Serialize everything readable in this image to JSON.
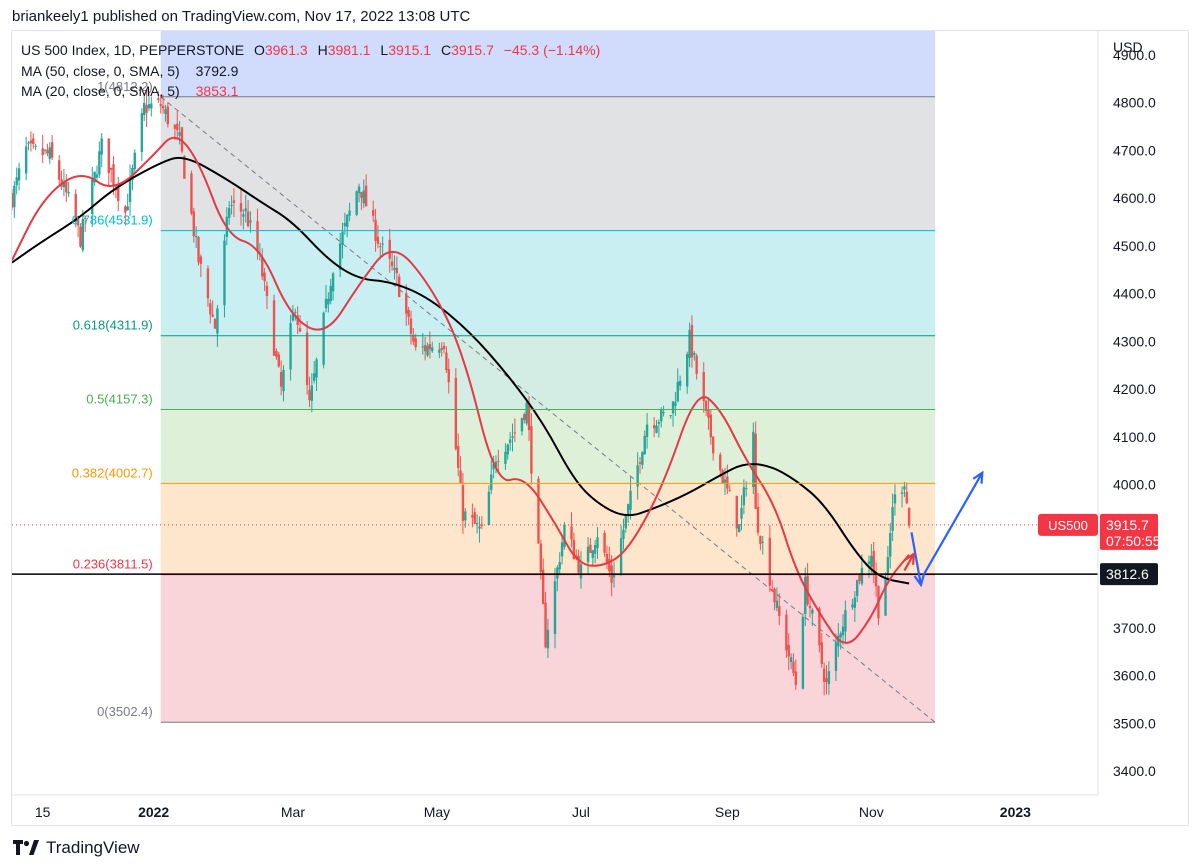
{
  "header": {
    "publish_line": "briankeely1 published on TradingView.com, Nov 17, 2022 13:08 UTC"
  },
  "legend": {
    "symbol": "US 500 Index, 1D, PEPPERSTONE",
    "open_label": "O",
    "open": "3961.3",
    "high_label": "H",
    "high": "3981.1",
    "low_label": "L",
    "low": "3915.1",
    "close_label": "C",
    "close": "3915.7",
    "change": "−45.3 (−1.14%)",
    "ma50_label": "MA (50, close, 0, SMA, 5)",
    "ma50_value": "3792.9",
    "ma20_label": "MA (20, close, 0, SMA, 5)",
    "ma20_value": "3853.1"
  },
  "footer": {
    "brand": "TradingView"
  },
  "colors": {
    "up": "#26a69a",
    "down": "#ef5350",
    "ma50": "#000000",
    "ma20": "#e53945",
    "arrow": "#2962ff"
  },
  "chart_data": {
    "type": "candlestick",
    "title": "US 500 Index, 1D, PEPPERSTONE",
    "currency": "USD",
    "ylim": [
      3350,
      4950
    ],
    "y_ticks": [
      "3400.0",
      "3500.0",
      "3600.0",
      "3700.0",
      "3800.0",
      "3900.0",
      "4000.0",
      "4100.0",
      "4200.0",
      "4300.0",
      "4400.0",
      "4500.0",
      "4600.0",
      "4700.0",
      "4800.0",
      "4900.0"
    ],
    "y_values": [
      3400,
      3500,
      3600,
      3700,
      3800,
      3900,
      4000,
      4100,
      4200,
      4300,
      4400,
      4500,
      4600,
      4700,
      4800,
      4900
    ],
    "x_ticks": [
      {
        "label": "15",
        "date": "2021-11-15"
      },
      {
        "label": "2022",
        "date": "2022-01-01"
      },
      {
        "label": "Mar",
        "date": "2022-03-01"
      },
      {
        "label": "May",
        "date": "2022-05-01"
      },
      {
        "label": "Jul",
        "date": "2022-07-01"
      },
      {
        "label": "Sep",
        "date": "2022-09-01"
      },
      {
        "label": "Nov",
        "date": "2022-11-01"
      },
      {
        "label": "2023",
        "date": "2023-01-01"
      }
    ],
    "xlim": [
      "2021-11-02",
      "2023-02-05"
    ],
    "price_path": [
      [
        "2021-11-02",
        4600
      ],
      [
        "2021-11-08",
        4700
      ],
      [
        "2021-11-18",
        4690
      ],
      [
        "2021-11-26",
        4595
      ],
      [
        "2021-12-01",
        4515
      ],
      [
        "2021-12-10",
        4710
      ],
      [
        "2021-12-20",
        4570
      ],
      [
        "2021-12-28",
        4790
      ],
      [
        "2022-01-04",
        4795
      ],
      [
        "2022-01-12",
        4720
      ],
      [
        "2022-01-20",
        4470
      ],
      [
        "2022-01-27",
        4330
      ],
      [
        "2022-02-02",
        4585
      ],
      [
        "2022-02-09",
        4570
      ],
      [
        "2022-02-15",
        4470
      ],
      [
        "2022-02-24",
        4200
      ],
      [
        "2022-03-02",
        4380
      ],
      [
        "2022-03-08",
        4165
      ],
      [
        "2022-03-18",
        4460
      ],
      [
        "2022-03-29",
        4630
      ],
      [
        "2022-04-07",
        4500
      ],
      [
        "2022-04-14",
        4430
      ],
      [
        "2022-04-22",
        4280
      ],
      [
        "2022-05-04",
        4300
      ],
      [
        "2022-05-12",
        3940
      ],
      [
        "2022-05-20",
        3900
      ],
      [
        "2022-05-26",
        4060
      ],
      [
        "2022-06-03",
        4110
      ],
      [
        "2022-06-08",
        4165
      ],
      [
        "2022-06-16",
        3675
      ],
      [
        "2022-06-24",
        3910
      ],
      [
        "2022-07-01",
        3820
      ],
      [
        "2022-07-08",
        3900
      ],
      [
        "2022-07-14",
        3800
      ],
      [
        "2022-07-22",
        3970
      ],
      [
        "2022-07-29",
        4130
      ],
      [
        "2022-08-08",
        4150
      ],
      [
        "2022-08-16",
        4305
      ],
      [
        "2022-08-23",
        4140
      ],
      [
        "2022-08-29",
        4030
      ],
      [
        "2022-09-06",
        3910
      ],
      [
        "2022-09-12",
        4110
      ],
      [
        "2022-09-13",
        3940
      ],
      [
        "2022-09-22",
        3740
      ],
      [
        "2022-09-30",
        3585
      ],
      [
        "2022-10-04",
        3790
      ],
      [
        "2022-10-13",
        3580
      ],
      [
        "2022-10-19",
        3700
      ],
      [
        "2022-10-27",
        3810
      ],
      [
        "2022-11-01",
        3860
      ],
      [
        "2022-11-04",
        3740
      ],
      [
        "2022-11-08",
        3830
      ],
      [
        "2022-11-10",
        3960
      ],
      [
        "2022-11-15",
        4010
      ],
      [
        "2022-11-17",
        3915.7
      ]
    ],
    "ma50_path": [
      [
        "2021-11-02",
        4465
      ],
      [
        "2021-11-15",
        4510
      ],
      [
        "2021-12-01",
        4560
      ],
      [
        "2021-12-15",
        4620
      ],
      [
        "2022-01-04",
        4675
      ],
      [
        "2022-01-14",
        4690
      ],
      [
        "2022-02-01",
        4640
      ],
      [
        "2022-02-16",
        4590
      ],
      [
        "2022-03-01",
        4550
      ],
      [
        "2022-03-16",
        4470
      ],
      [
        "2022-03-29",
        4430
      ],
      [
        "2022-04-12",
        4425
      ],
      [
        "2022-04-28",
        4390
      ],
      [
        "2022-05-15",
        4320
      ],
      [
        "2022-05-31",
        4230
      ],
      [
        "2022-06-15",
        4130
      ],
      [
        "2022-06-28",
        4010
      ],
      [
        "2022-07-08",
        3960
      ],
      [
        "2022-07-20",
        3930
      ],
      [
        "2022-08-01",
        3950
      ],
      [
        "2022-08-15",
        3980
      ],
      [
        "2022-08-29",
        4020
      ],
      [
        "2022-09-08",
        4045
      ],
      [
        "2022-09-19",
        4040
      ],
      [
        "2022-09-30",
        4010
      ],
      [
        "2022-10-12",
        3960
      ],
      [
        "2022-10-25",
        3860
      ],
      [
        "2022-11-04",
        3805
      ],
      [
        "2022-11-17",
        3792.9
      ]
    ],
    "ma20_path": [
      [
        "2021-11-02",
        4470
      ],
      [
        "2021-11-15",
        4600
      ],
      [
        "2021-12-01",
        4660
      ],
      [
        "2021-12-15",
        4610
      ],
      [
        "2022-01-01",
        4690
      ],
      [
        "2022-01-10",
        4740
      ],
      [
        "2022-01-20",
        4680
      ],
      [
        "2022-02-01",
        4520
      ],
      [
        "2022-02-15",
        4500
      ],
      [
        "2022-02-28",
        4350
      ],
      [
        "2022-03-15",
        4310
      ],
      [
        "2022-03-29",
        4420
      ],
      [
        "2022-04-12",
        4510
      ],
      [
        "2022-04-28",
        4420
      ],
      [
        "2022-05-12",
        4280
      ],
      [
        "2022-05-26",
        4000
      ],
      [
        "2022-06-07",
        4020
      ],
      [
        "2022-06-20",
        3920
      ],
      [
        "2022-06-30",
        3830
      ],
      [
        "2022-07-12",
        3830
      ],
      [
        "2022-07-22",
        3870
      ],
      [
        "2022-08-05",
        4000
      ],
      [
        "2022-08-19",
        4200
      ],
      [
        "2022-08-29",
        4160
      ],
      [
        "2022-09-09",
        4050
      ],
      [
        "2022-09-21",
        3960
      ],
      [
        "2022-09-30",
        3820
      ],
      [
        "2022-10-10",
        3730
      ],
      [
        "2022-10-21",
        3650
      ],
      [
        "2022-11-01",
        3720
      ],
      [
        "2022-11-08",
        3800
      ],
      [
        "2022-11-17",
        3853.1
      ]
    ],
    "fib_start_date": "2022-01-04",
    "fib_end_date": "2022-11-28",
    "fib_trend": {
      "from": [
        "2022-01-04",
        4812.2
      ],
      "to": [
        "2022-11-28",
        3502.4
      ]
    },
    "fib_levels": [
      {
        "ratio": 1,
        "label": "1(4812.2)",
        "price": 4812.2,
        "line": "#787b86",
        "fill": "#d1dbfc",
        "text": "#787b86"
      },
      {
        "ratio": 0.786,
        "label": "0.786(4531.9)",
        "price": 4531.9,
        "line": "#00bcd4",
        "fill": "#e1e2e4",
        "text": "#00bcd4"
      },
      {
        "ratio": 0.618,
        "label": "0.618(4311.9)",
        "price": 4311.9,
        "line": "#089981",
        "fill": "#c9eff2",
        "text": "#089981"
      },
      {
        "ratio": 0.5,
        "label": "0.5(4157.3)",
        "price": 4157.3,
        "line": "#4caf50",
        "fill": "#d3ece4",
        "text": "#4caf50"
      },
      {
        "ratio": 0.382,
        "label": "0.382(4002.7)",
        "price": 4002.7,
        "line": "#ff9800",
        "fill": "#dff0d9",
        "text": "#ff9800"
      },
      {
        "ratio": 0.236,
        "label": "0.236(3811.5)",
        "price": 3811.5,
        "line": "#f23645",
        "fill": "#fde6cc",
        "text": "#f23645"
      },
      {
        "ratio": 0,
        "label": "0(3502.4)",
        "price": 3502.4,
        "line": "#787b86",
        "fill": "#f9d4d8",
        "text": "#787b86"
      }
    ],
    "fib_top_fill": {
      "price": 4950,
      "fill": "#d1dbfc"
    },
    "horizontal_line": {
      "price": 3812.6,
      "label": "3812.6"
    },
    "last_price": {
      "price": 3915.7,
      "symbol": "US500",
      "value": "3915.7",
      "countdown": "07:50:55"
    },
    "projection_arrows": [
      {
        "from": [
          "2022-11-18",
          3900
        ],
        "to": [
          "2022-11-22",
          3790
        ]
      },
      {
        "from": [
          "2022-11-23",
          3810
        ],
        "to": [
          "2022-12-18",
          4025
        ]
      }
    ],
    "red_hint_arrow": {
      "from": [
        "2022-11-15",
        3820
      ],
      "to": [
        "2022-11-19",
        3855
      ]
    }
  }
}
